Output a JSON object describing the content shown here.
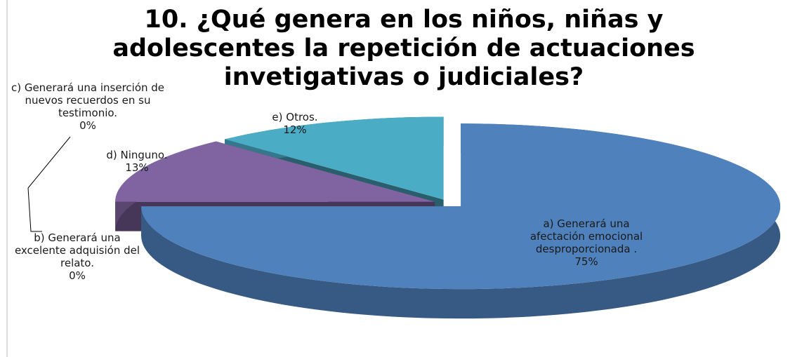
{
  "chart_data": {
    "type": "pie",
    "title": "10. ¿Qué genera en los niños, niñas y adolescentes la repetición de actuaciones invetigativas o judiciales?",
    "categories": [
      "a) Generará una afectación emocional desproporcionada .",
      "b) Generará una excelente adquisión del relato.",
      "c) Generará una inserción de nuevos recuerdos en su testimonio.",
      "d) Ninguno.",
      "e) Otros."
    ],
    "values": [
      75,
      0,
      0,
      13,
      12
    ],
    "value_labels": [
      "75%",
      "0%",
      "0%",
      "13%",
      "12%"
    ],
    "colors": [
      "#4f81bd",
      "#9bbb59",
      "#c0504d",
      "#8064a2",
      "#4bacc6"
    ]
  }
}
